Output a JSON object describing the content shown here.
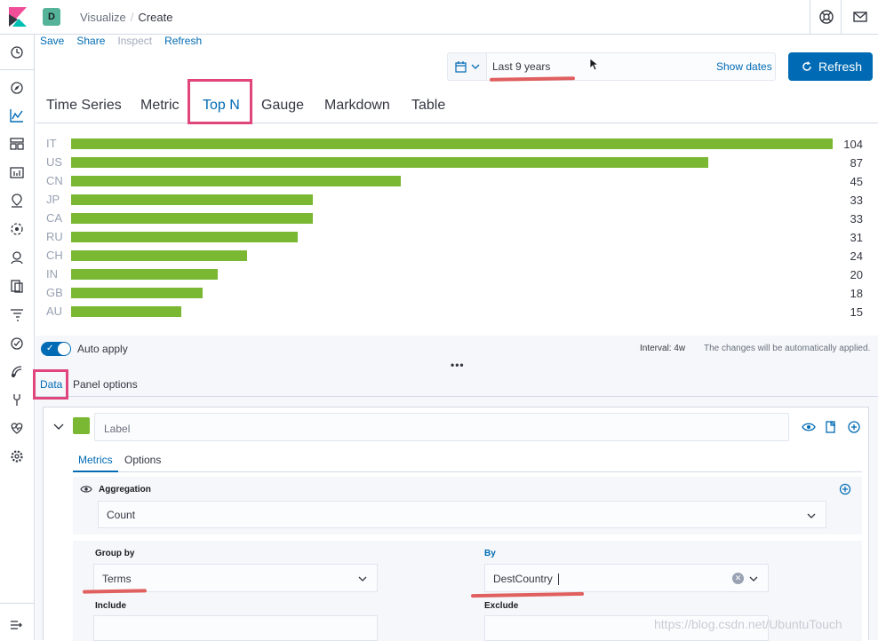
{
  "header": {
    "space_initial": "D",
    "breadcrumb": [
      "Visualize",
      "Create"
    ]
  },
  "menu": {
    "items": [
      {
        "label": "Save",
        "disabled": false
      },
      {
        "label": "Share",
        "disabled": false
      },
      {
        "label": "Inspect",
        "disabled": true
      },
      {
        "label": "Refresh",
        "disabled": false
      }
    ]
  },
  "timepicker": {
    "range": "Last 9 years",
    "show_dates": "Show dates",
    "refresh_label": "Refresh"
  },
  "viz_tabs": {
    "items": [
      "Time Series",
      "Metric",
      "Top N",
      "Gauge",
      "Markdown",
      "Table"
    ],
    "selected": "Top N"
  },
  "chart_data": {
    "type": "bar",
    "orientation": "horizontal",
    "categories": [
      "IT",
      "US",
      "CN",
      "JP",
      "CA",
      "RU",
      "CH",
      "IN",
      "GB",
      "AU"
    ],
    "values": [
      104,
      87,
      45,
      33,
      33,
      31,
      24,
      20,
      18,
      15
    ],
    "value_labels": [
      "104",
      "87",
      "45",
      "33",
      "33",
      "31",
      "24",
      "20",
      "18",
      "15"
    ],
    "color": "#7ab833",
    "grid": false
  },
  "editor": {
    "auto_apply_label": "Auto apply",
    "auto_apply_on": true,
    "interval": "Interval: 4w",
    "auto_hint": "The changes will be automatically applied.",
    "dots": "•••",
    "tabs": [
      "Data",
      "Panel options"
    ],
    "series": {
      "label_placeholder": "Label",
      "color": "#7ab833",
      "subtabs": [
        "Metrics",
        "Options"
      ],
      "aggregation_label": "Aggregation",
      "aggregation_value": "Count",
      "group_by_label": "Group by",
      "group_by_value": "Terms",
      "by_label": "By",
      "by_value": "DestCountry",
      "include_label": "Include",
      "exclude_label": "Exclude"
    }
  },
  "watermark": "https://blog.csdn.net/UbuntuTouch",
  "colors": {
    "primary": "#006bb4",
    "bar": "#7ab833",
    "highlight_box": "#e0457b",
    "underline": "#e05f5f"
  }
}
